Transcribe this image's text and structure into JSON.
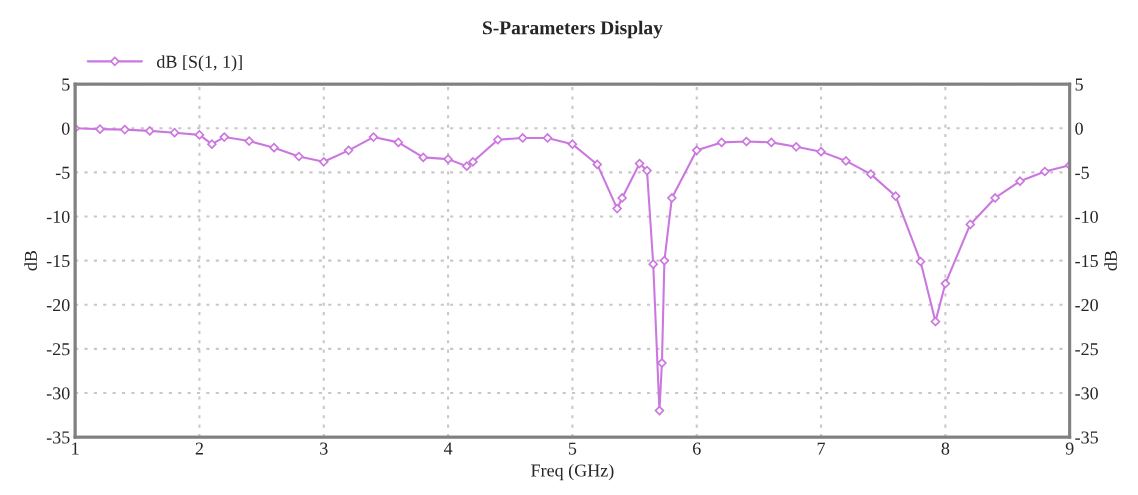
{
  "chart_data": {
    "type": "line",
    "title": "S-Parameters Display",
    "xlabel": "Freq (GHz)",
    "ylabel": "dB",
    "y2label": "dB",
    "x": [
      1.0,
      1.2,
      1.4,
      1.6,
      1.8,
      2.0,
      2.1,
      2.2,
      2.4,
      2.6,
      2.8,
      3.0,
      3.2,
      3.4,
      3.6,
      3.8,
      4.0,
      4.15,
      4.2,
      4.4,
      4.6,
      4.8,
      5.0,
      5.2,
      5.36,
      5.4,
      5.54,
      5.6,
      5.65,
      5.7,
      5.72,
      5.74,
      5.8,
      6.0,
      6.2,
      6.4,
      6.6,
      6.8,
      7.0,
      7.2,
      7.4,
      7.6,
      7.8,
      7.92,
      8.0,
      8.2,
      8.4,
      8.6,
      8.8,
      9.0
    ],
    "series": [
      {
        "name": "dB [S(1, 1)]",
        "color": "#cc77e0",
        "values": [
          0,
          -0.1,
          -0.15,
          -0.3,
          -0.5,
          -0.75,
          -1.8,
          -1.0,
          -1.45,
          -2.2,
          -3.2,
          -3.8,
          -2.5,
          -1.0,
          -1.6,
          -3.3,
          -3.5,
          -4.3,
          -3.8,
          -1.3,
          -1.1,
          -1.1,
          -1.8,
          -4.1,
          -9.1,
          -7.9,
          -4.0,
          -4.8,
          -15.4,
          -32.0,
          -26.6,
          -15.0,
          -7.9,
          -2.5,
          -1.6,
          -1.5,
          -1.6,
          -2.1,
          -2.65,
          -3.7,
          -5.2,
          -7.7,
          -15.1,
          -21.9,
          -17.6,
          -10.9,
          -7.9,
          -6.0,
          -4.9,
          -4.2
        ]
      }
    ],
    "xlim": [
      1,
      9
    ],
    "xticks": [
      1,
      2,
      3,
      4,
      5,
      6,
      7,
      8,
      9
    ],
    "ylim": [
      -35,
      5
    ],
    "yticks": [
      -35,
      -30,
      -25,
      -20,
      -15,
      -10,
      -5,
      0,
      5
    ],
    "y2lim": [
      -35,
      5
    ],
    "y2ticks": [
      -35,
      -30,
      -25,
      -20,
      -15,
      -10,
      -5,
      0,
      5
    ],
    "grid": true,
    "legend": "top left",
    "marker": "diamond",
    "line_style": "solid"
  }
}
